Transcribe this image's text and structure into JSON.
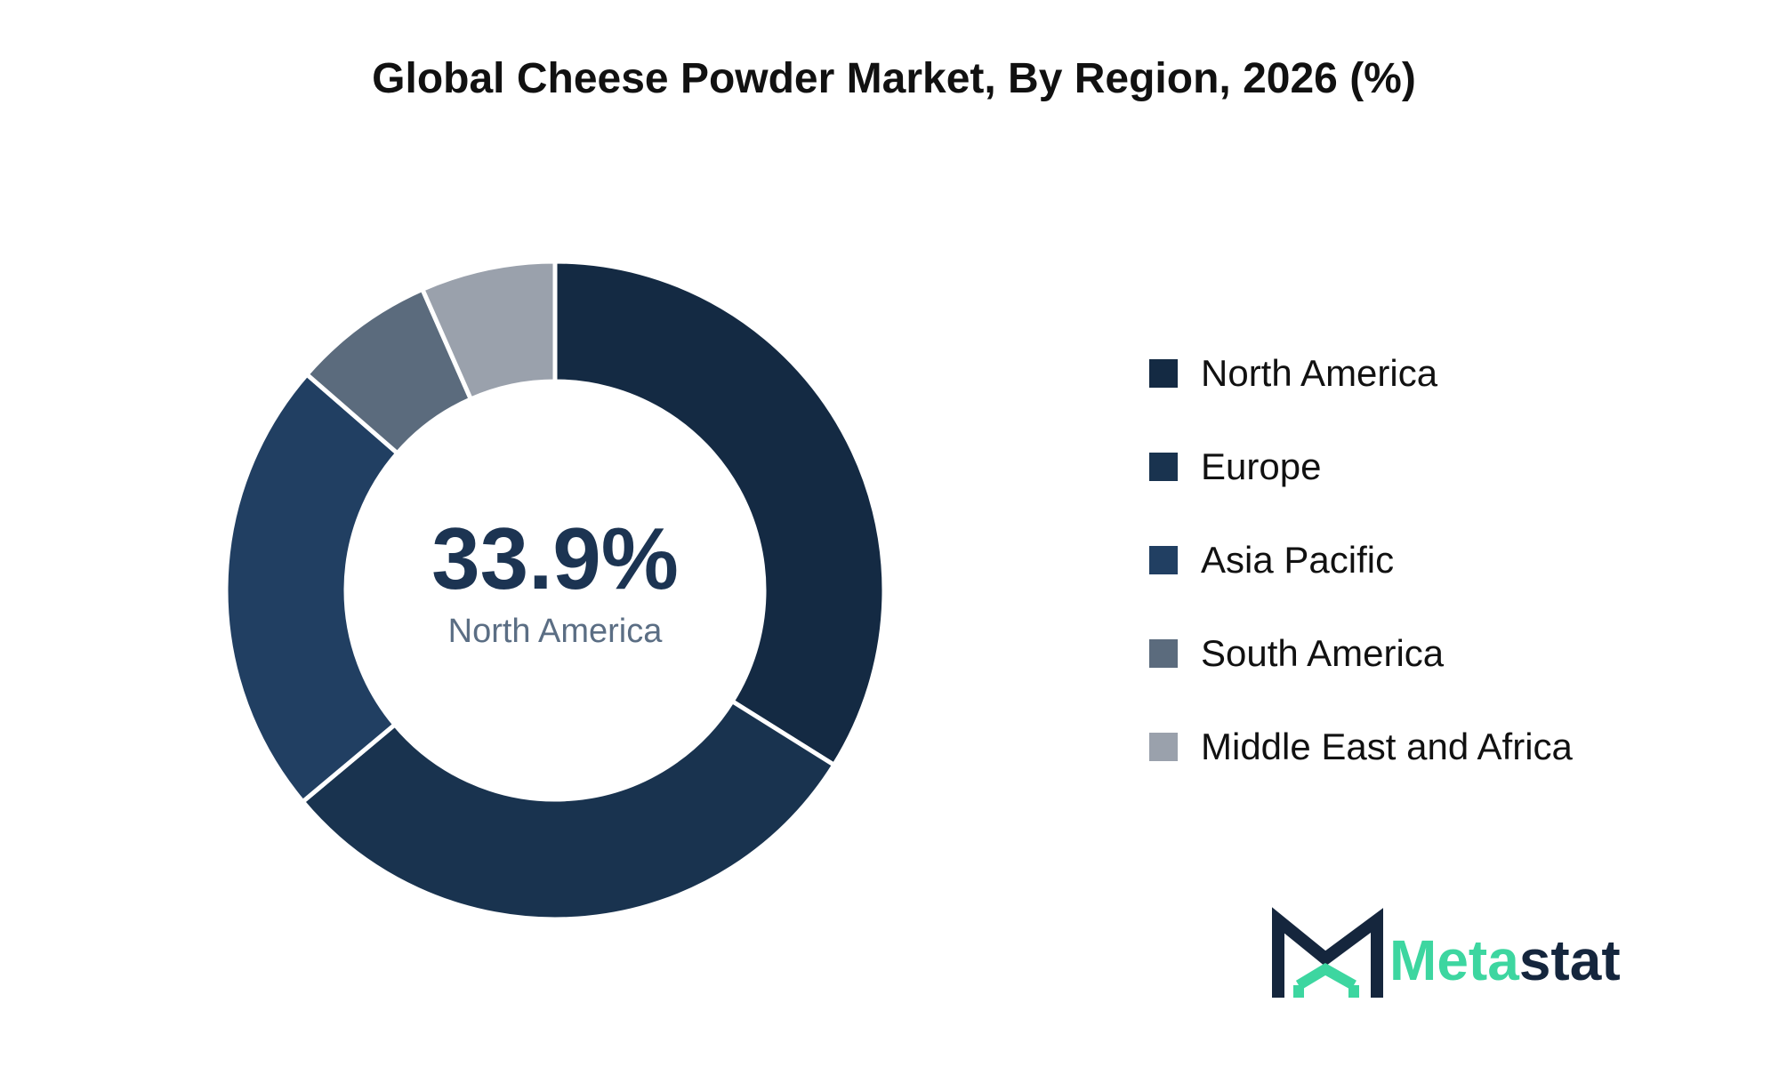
{
  "chart_data": {
    "type": "pie",
    "title": "Global Cheese Powder Market, By Region, 2026 (%)",
    "categories": [
      "North America",
      "Europe",
      "Asia Pacific",
      "South America",
      "Middle East and Africa"
    ],
    "values": [
      33.9,
      30.0,
      22.5,
      7.0,
      6.6
    ],
    "colors": [
      "#142a43",
      "#19334f",
      "#213f62",
      "#5b6b7d",
      "#9aa1ac"
    ],
    "donut": true,
    "center_value": "33.9%",
    "center_label": "North America",
    "legend_position": "right"
  },
  "branding": {
    "logo_text_primary": "Meta",
    "logo_text_secondary": "stat",
    "logo_primary_color": "#3dd6a0",
    "logo_secondary_color": "#15263d"
  }
}
